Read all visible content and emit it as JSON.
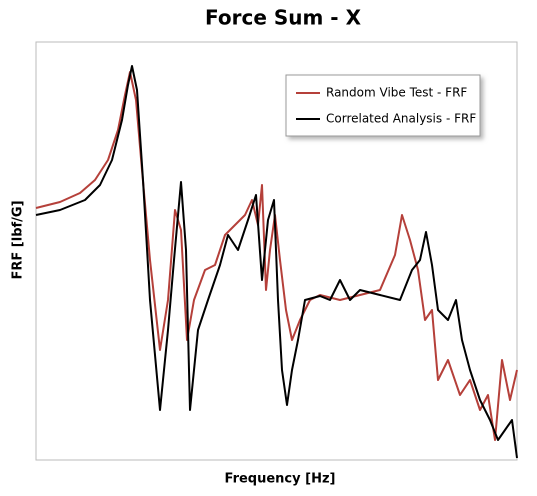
{
  "chart_data": {
    "type": "line",
    "title": "Force Sum - X",
    "x_label": "Frequency [Hz]",
    "y_label": "FRF [lbf/G]",
    "xlim": [
      0,
      481
    ],
    "ylim": [
      0,
      418
    ],
    "legend": "upper right",
    "series": [
      {
        "name": "Random Vibe Test - FRF",
        "color": "#b5403a",
        "x": [
          0,
          24,
          44,
          59,
          72,
          82,
          89,
          94,
          100,
          106,
          114,
          124,
          132,
          139,
          145,
          151,
          158,
          169,
          179,
          189,
          199,
          209,
          216,
          222,
          226,
          230,
          234,
          239,
          244,
          250,
          256,
          264,
          274,
          284,
          304,
          324,
          344,
          359,
          366,
          374,
          382,
          389,
          396,
          402,
          412,
          424,
          434,
          444,
          452,
          459,
          466,
          474,
          481
        ],
        "values": [
          252,
          258,
          267,
          280,
          300,
          330,
          365,
          388,
          360,
          290,
          200,
          110,
          160,
          250,
          230,
          120,
          160,
          190,
          195,
          225,
          235,
          245,
          260,
          235,
          275,
          170,
          210,
          245,
          200,
          150,
          120,
          140,
          160,
          165,
          160,
          165,
          170,
          205,
          245,
          220,
          190,
          140,
          150,
          80,
          100,
          65,
          80,
          50,
          65,
          20,
          100,
          60,
          90
        ]
      },
      {
        "name": "Correlated Analysis - FRF",
        "color": "#000000",
        "x": [
          0,
          24,
          49,
          64,
          76,
          86,
          92,
          96,
          101,
          107,
          114,
          124,
          132,
          138,
          145,
          150,
          154,
          162,
          172,
          184,
          192,
          202,
          212,
          220,
          226,
          232,
          238,
          242,
          246,
          251,
          256,
          262,
          269,
          284,
          294,
          304,
          314,
          324,
          344,
          364,
          376,
          384,
          390,
          396,
          402,
          412,
          420,
          426,
          434,
          444,
          454,
          462,
          469,
          476,
          481
        ],
        "values": [
          245,
          250,
          260,
          275,
          300,
          340,
          375,
          394,
          370,
          280,
          160,
          50,
          130,
          200,
          278,
          210,
          50,
          130,
          160,
          195,
          225,
          210,
          240,
          265,
          180,
          240,
          260,
          160,
          90,
          55,
          90,
          120,
          160,
          164,
          160,
          180,
          160,
          170,
          165,
          160,
          190,
          200,
          228,
          195,
          150,
          140,
          160,
          120,
          90,
          60,
          40,
          20,
          30,
          40,
          2
        ]
      }
    ]
  }
}
